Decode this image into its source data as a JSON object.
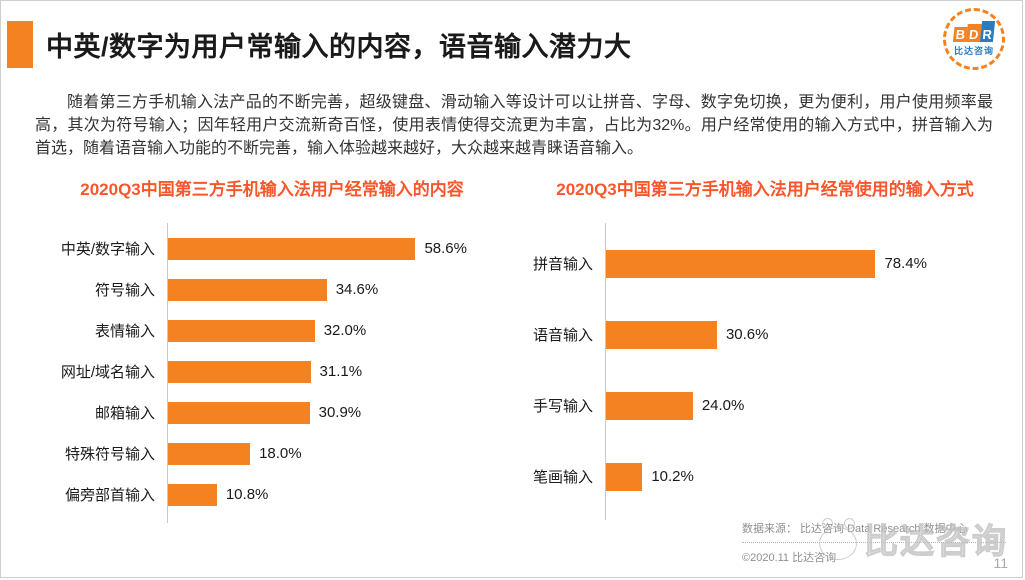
{
  "page": {
    "title": "中英/数字为用户常输入的内容，语音输入潜力大",
    "page_number": "11"
  },
  "logo": {
    "letters": [
      "B",
      "D",
      "R"
    ],
    "subtext": "比达咨询"
  },
  "intro": "随着第三方手机输入法产品的不断完善，超级键盘、滑动输入等设计可以让拼音、字母、数字免切换，更为便利，用户使用频率最高，其次为符号输入；因年轻用户交流新奇百怪，使用表情使得交流更为丰富，占比为32%。用户经常使用的输入方式中，拼音输入为首选，随着语音输入功能的不断完善，输入体验越来越好，大众越来越青睐语音输入。",
  "colors": {
    "bar": "#F58220",
    "chart_title": "#F9572B",
    "accent_block": "#F58220",
    "logo_blue": "#2B7BBF"
  },
  "chart_data": [
    {
      "type": "bar",
      "orientation": "horizontal",
      "title": "2020Q3中国第三方手机输入法用户经常输入的内容",
      "categories": [
        "中英/数字输入",
        "符号输入",
        "表情输入",
        "网址/域名输入",
        "邮箱输入",
        "特殊符号输入",
        "偏旁部首输入"
      ],
      "values": [
        58.6,
        34.6,
        32.0,
        31.1,
        30.9,
        18.0,
        10.8
      ],
      "labels": [
        "58.6%",
        "34.6%",
        "32.0%",
        "31.1%",
        "30.9%",
        "18.0%",
        "10.8%"
      ],
      "xlim": [
        0,
        65
      ],
      "grid": false,
      "legend": false,
      "bar_color": "#F58220"
    },
    {
      "type": "bar",
      "orientation": "horizontal",
      "title": "2020Q3中国第三方手机输入法用户经常使用的输入方式",
      "categories": [
        "拼音输入",
        "语音输入",
        "手写输入",
        "笔画输入"
      ],
      "values": [
        78.4,
        30.6,
        24.0,
        10.2
      ],
      "labels": [
        "78.4%",
        "30.6%",
        "24.0%",
        "10.2%"
      ],
      "xlim": [
        0,
        88
      ],
      "grid": false,
      "legend": false,
      "bar_color": "#F58220"
    }
  ],
  "footer": {
    "source": "数据来源： 比达咨询  Data Research  数据中心",
    "copyright": "©2020.11  比达咨询"
  },
  "watermark": "比达咨询"
}
